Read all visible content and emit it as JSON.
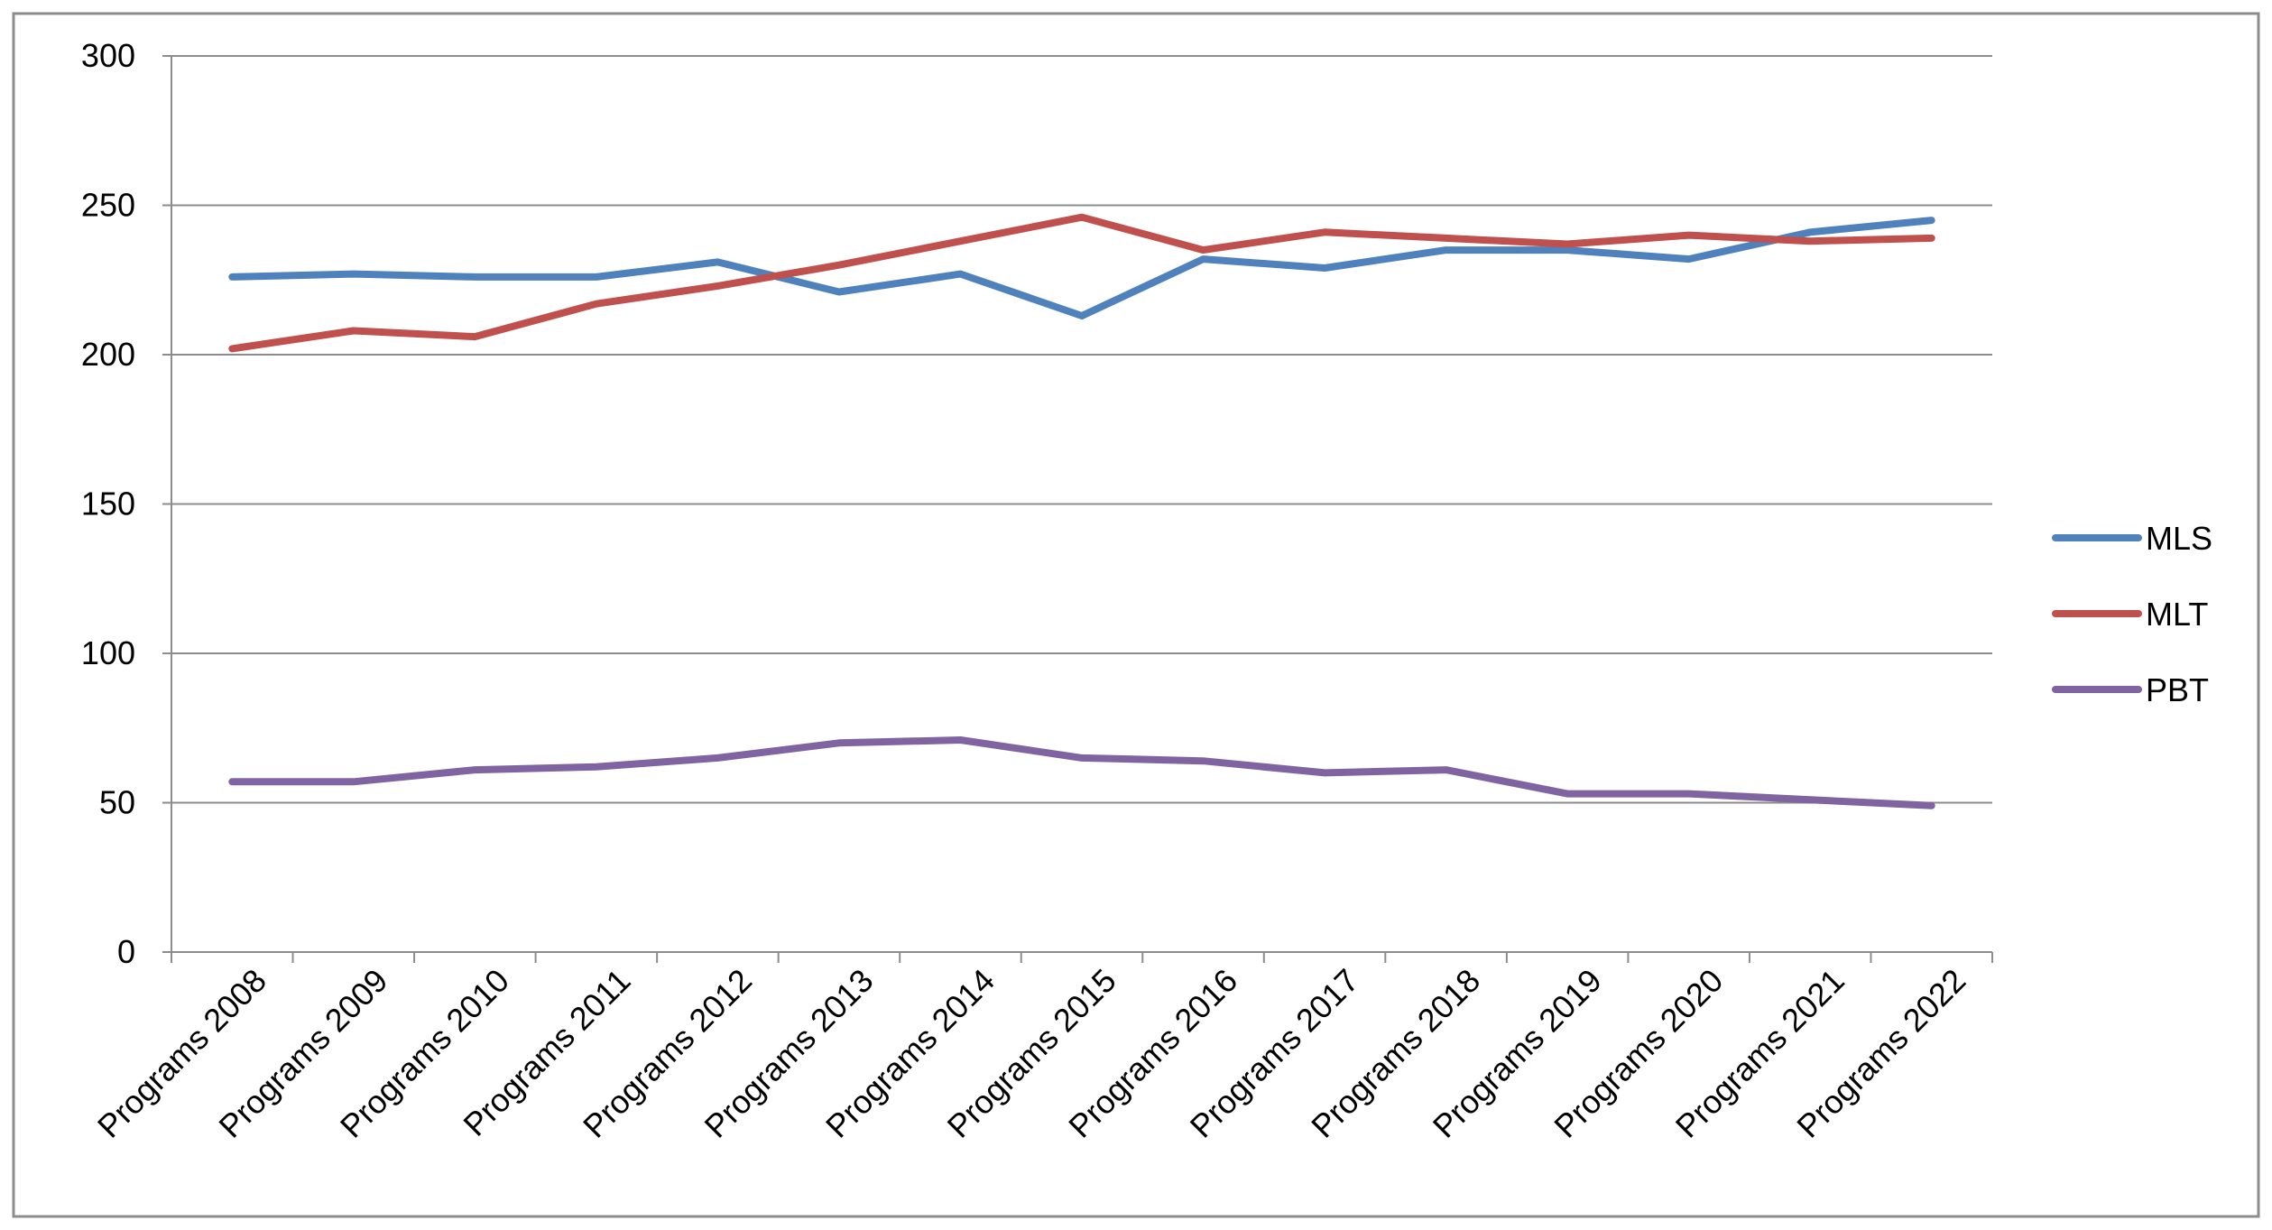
{
  "chart_data": {
    "type": "line",
    "title": "",
    "xlabel": "",
    "ylabel": "",
    "ylim": [
      0,
      300
    ],
    "yticks": [
      0,
      50,
      100,
      150,
      200,
      250,
      300
    ],
    "grid": true,
    "legend_position": "right",
    "categories": [
      "Programs 2008",
      "Programs 2009",
      "Programs 2010",
      "Programs 2011",
      "Programs 2012",
      "Programs 2013",
      "Programs 2014",
      "Programs 2015",
      "Programs 2016",
      "Programs 2017",
      "Programs 2018",
      "Programs 2019",
      "Programs 2020",
      "Programs 2021",
      "Programs 2022"
    ],
    "series": [
      {
        "name": "MLS",
        "color": "#4F81BD",
        "values": [
          226,
          227,
          226,
          226,
          231,
          221,
          227,
          213,
          232,
          229,
          235,
          235,
          232,
          241,
          245
        ]
      },
      {
        "name": "MLT",
        "color": "#C0504D",
        "values": [
          202,
          208,
          206,
          217,
          223,
          230,
          238,
          246,
          235,
          241,
          239,
          237,
          240,
          238,
          239
        ]
      },
      {
        "name": "PBT",
        "color": "#8064A2",
        "values": [
          57,
          57,
          61,
          62,
          65,
          70,
          71,
          65,
          64,
          60,
          61,
          53,
          53,
          51,
          49
        ]
      }
    ]
  }
}
